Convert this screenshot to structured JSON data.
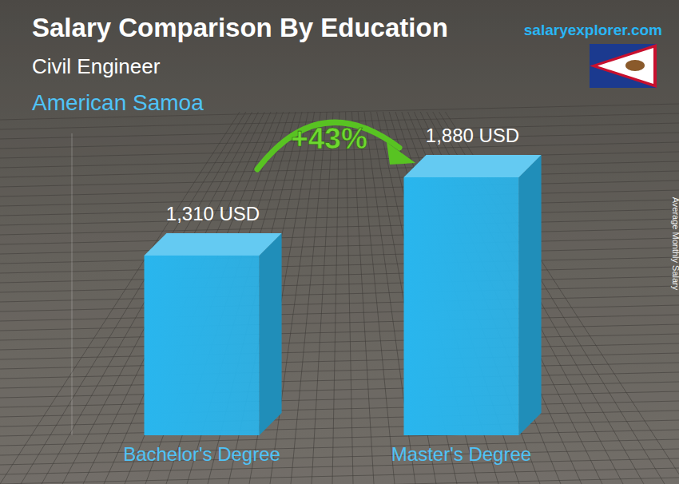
{
  "chart_data": {
    "type": "bar",
    "title": "Salary Comparison By Education",
    "subtitle": "Civil Engineer",
    "location": "American Samoa",
    "source": "salaryexplorer.com",
    "ylabel": "Average Monthly Salary",
    "annotations": [
      "+43%"
    ],
    "categories": [
      "Bachelor's Degree",
      "Master's Degree"
    ],
    "values": [
      1310,
      1880
    ],
    "value_labels": [
      "1,310 USD",
      "1,880 USD"
    ],
    "color": "#29b6ee",
    "ylim": [
      0,
      2200
    ],
    "data_labels": true,
    "tick_labels": false
  }
}
